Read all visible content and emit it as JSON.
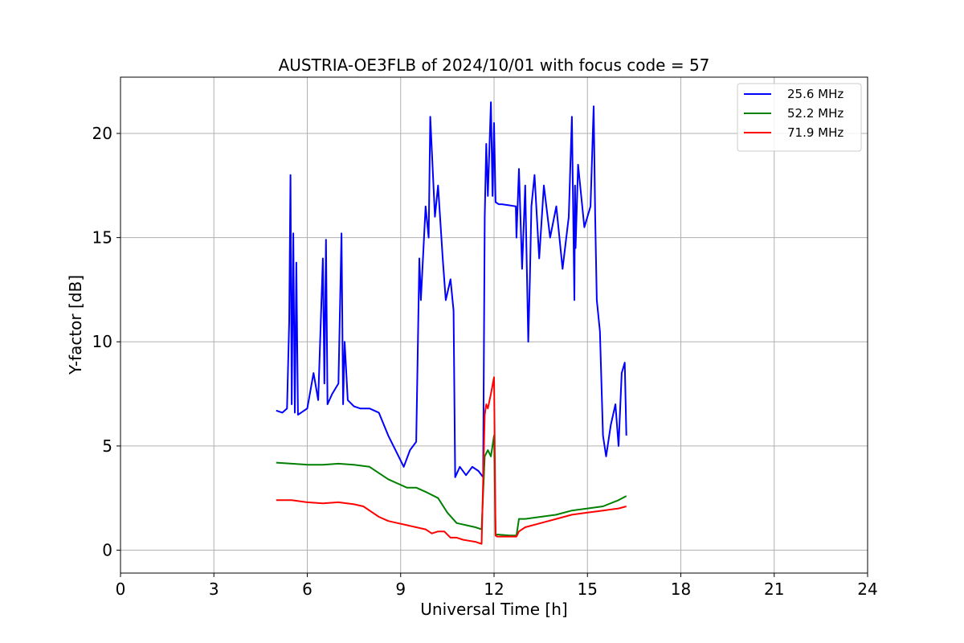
{
  "chart_data": {
    "type": "line",
    "title": "AUSTRIA-OE3FLB of 2024/10/01 with focus code = 57",
    "xlabel": "Universal Time [h]",
    "ylabel": "Y-factor [dB]",
    "xlim": [
      0,
      24
    ],
    "ylim": [
      -1.1,
      22.7
    ],
    "xticks": [
      0,
      3,
      6,
      9,
      12,
      15,
      18,
      21,
      24
    ],
    "yticks": [
      0,
      5,
      10,
      15,
      20
    ],
    "grid": true,
    "legend_position": "top-right",
    "series": [
      {
        "name": "25.6 MHz",
        "color": "#0000ff",
        "x": [
          5.0,
          5.2,
          5.35,
          5.42,
          5.46,
          5.5,
          5.55,
          5.6,
          5.65,
          5.7,
          5.8,
          6.0,
          6.2,
          6.35,
          6.5,
          6.55,
          6.6,
          6.65,
          6.8,
          7.0,
          7.1,
          7.15,
          7.2,
          7.3,
          7.5,
          7.7,
          8.0,
          8.3,
          8.6,
          8.9,
          9.1,
          9.3,
          9.5,
          9.6,
          9.65,
          9.8,
          9.9,
          9.95,
          10.1,
          10.2,
          10.35,
          10.45,
          10.6,
          10.7,
          10.75,
          10.9,
          11.1,
          11.3,
          11.5,
          11.65,
          11.7,
          11.75,
          11.8,
          11.9,
          11.95,
          12.0,
          12.05,
          12.15,
          12.25,
          12.7,
          12.72,
          12.8,
          12.9,
          13.0,
          13.1,
          13.15,
          13.2,
          13.3,
          13.45,
          13.6,
          13.8,
          14.0,
          14.2,
          14.4,
          14.5,
          14.58,
          14.6,
          14.62,
          14.7,
          14.9,
          15.1,
          15.2,
          15.25,
          15.3,
          15.4,
          15.5,
          15.6,
          15.75,
          15.9,
          16.0,
          16.1,
          16.2,
          16.25
        ],
        "y": [
          6.7,
          6.6,
          6.8,
          11.0,
          18.0,
          7.0,
          15.2,
          6.6,
          13.8,
          6.5,
          6.6,
          6.8,
          8.5,
          7.2,
          14.0,
          8.0,
          14.9,
          7.0,
          7.5,
          8.0,
          15.2,
          7.0,
          10.0,
          7.2,
          6.9,
          6.8,
          6.8,
          6.6,
          5.5,
          4.6,
          4.0,
          4.8,
          5.2,
          14.0,
          12.0,
          16.5,
          15.0,
          20.8,
          16.0,
          17.5,
          14.0,
          12.0,
          13.0,
          11.5,
          3.5,
          4.0,
          3.6,
          4.0,
          3.8,
          3.5,
          16.0,
          19.5,
          17.0,
          21.5,
          17.0,
          20.5,
          16.7,
          16.6,
          16.6,
          16.5,
          15.0,
          18.3,
          13.5,
          17.5,
          10.0,
          13.0,
          16.5,
          18.0,
          14.0,
          17.5,
          15.0,
          16.5,
          13.5,
          16.0,
          20.8,
          12.0,
          17.5,
          14.5,
          18.5,
          15.5,
          16.5,
          21.3,
          16.0,
          12.0,
          10.5,
          5.5,
          4.5,
          6.0,
          7.0,
          5.0,
          8.5,
          9.0,
          5.5
        ]
      },
      {
        "name": "52.2 MHz",
        "color": "#008000",
        "x": [
          5.0,
          5.5,
          6.0,
          6.5,
          7.0,
          7.5,
          8.0,
          8.3,
          8.6,
          8.9,
          9.2,
          9.5,
          9.8,
          10.2,
          10.5,
          10.8,
          11.1,
          11.4,
          11.6,
          11.7,
          11.8,
          11.9,
          12.0,
          12.05,
          12.1,
          12.5,
          12.72,
          12.8,
          13.0,
          13.5,
          14.0,
          14.5,
          15.0,
          15.5,
          16.0,
          16.25
        ],
        "y": [
          4.2,
          4.15,
          4.1,
          4.1,
          4.15,
          4.1,
          4.0,
          3.7,
          3.4,
          3.2,
          3.0,
          3.0,
          2.8,
          2.5,
          1.8,
          1.3,
          1.2,
          1.1,
          1.0,
          4.5,
          4.8,
          4.5,
          5.5,
          0.7,
          0.75,
          0.7,
          0.7,
          1.5,
          1.5,
          1.6,
          1.7,
          1.9,
          2.0,
          2.1,
          2.4,
          2.6
        ]
      },
      {
        "name": "71.9 MHz",
        "color": "#ff0000",
        "x": [
          5.0,
          5.5,
          6.0,
          6.5,
          7.0,
          7.5,
          7.8,
          8.0,
          8.3,
          8.6,
          8.9,
          9.2,
          9.5,
          9.8,
          10.0,
          10.2,
          10.4,
          10.6,
          10.8,
          11.0,
          11.2,
          11.4,
          11.6,
          11.7,
          11.75,
          11.8,
          11.9,
          12.0,
          12.05,
          12.1,
          12.5,
          12.72,
          12.8,
          13.0,
          13.5,
          14.0,
          14.5,
          15.0,
          15.5,
          16.0,
          16.25
        ],
        "y": [
          2.4,
          2.4,
          2.3,
          2.25,
          2.3,
          2.2,
          2.1,
          1.9,
          1.6,
          1.4,
          1.3,
          1.2,
          1.1,
          1.0,
          0.8,
          0.9,
          0.9,
          0.6,
          0.6,
          0.5,
          0.45,
          0.4,
          0.3,
          6.5,
          7.0,
          6.8,
          7.5,
          8.3,
          0.7,
          0.65,
          0.65,
          0.65,
          0.9,
          1.1,
          1.3,
          1.5,
          1.7,
          1.8,
          1.9,
          2.0,
          2.1
        ]
      }
    ]
  }
}
